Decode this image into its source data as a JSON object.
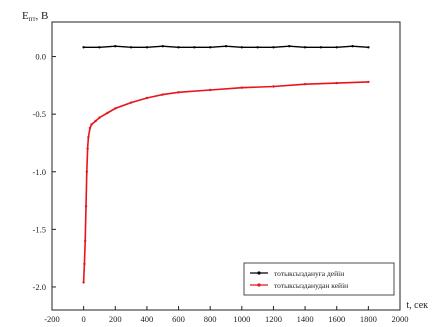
{
  "chart_data": {
    "type": "line",
    "title": "",
    "ylabel": "E",
    "ylabel_sub": "пт",
    "ylabel_unit": ", В",
    "xlabel": "t, сек",
    "xlim": [
      -200,
      2000
    ],
    "ylim": [
      -2.2,
      0.3
    ],
    "grid": false,
    "legend_position": "bottom-right",
    "x_ticks": [
      -200,
      0,
      200,
      400,
      600,
      800,
      1000,
      1200,
      1400,
      1600,
      1800,
      2000
    ],
    "y_ticks": [
      0.0,
      -0.5,
      -1.0,
      -1.5,
      -2.0
    ],
    "y_tick_labels": [
      "0.0",
      "-0.5",
      "-1.0",
      "-1.5",
      "-2.0"
    ],
    "series": [
      {
        "name": "тотыксыздануға дейін",
        "color": "#000000",
        "x": [
          0,
          100,
          200,
          300,
          400,
          500,
          600,
          700,
          800,
          900,
          1000,
          1100,
          1200,
          1300,
          1400,
          1500,
          1600,
          1700,
          1800
        ],
        "y": [
          0.08,
          0.08,
          0.09,
          0.08,
          0.08,
          0.09,
          0.08,
          0.08,
          0.08,
          0.09,
          0.08,
          0.08,
          0.08,
          0.09,
          0.08,
          0.08,
          0.08,
          0.09,
          0.08
        ]
      },
      {
        "name": "тотыксызданудан кейін",
        "color": "#e8141b",
        "x": [
          0,
          5,
          10,
          15,
          20,
          25,
          30,
          40,
          50,
          75,
          100,
          150,
          200,
          300,
          400,
          500,
          600,
          800,
          1000,
          1200,
          1400,
          1600,
          1800
        ],
        "y": [
          -1.96,
          -1.8,
          -1.6,
          -1.3,
          -1.0,
          -0.8,
          -0.7,
          -0.62,
          -0.59,
          -0.56,
          -0.53,
          -0.49,
          -0.45,
          -0.4,
          -0.36,
          -0.33,
          -0.31,
          -0.29,
          -0.27,
          -0.26,
          -0.24,
          -0.23,
          -0.22
        ]
      }
    ]
  }
}
